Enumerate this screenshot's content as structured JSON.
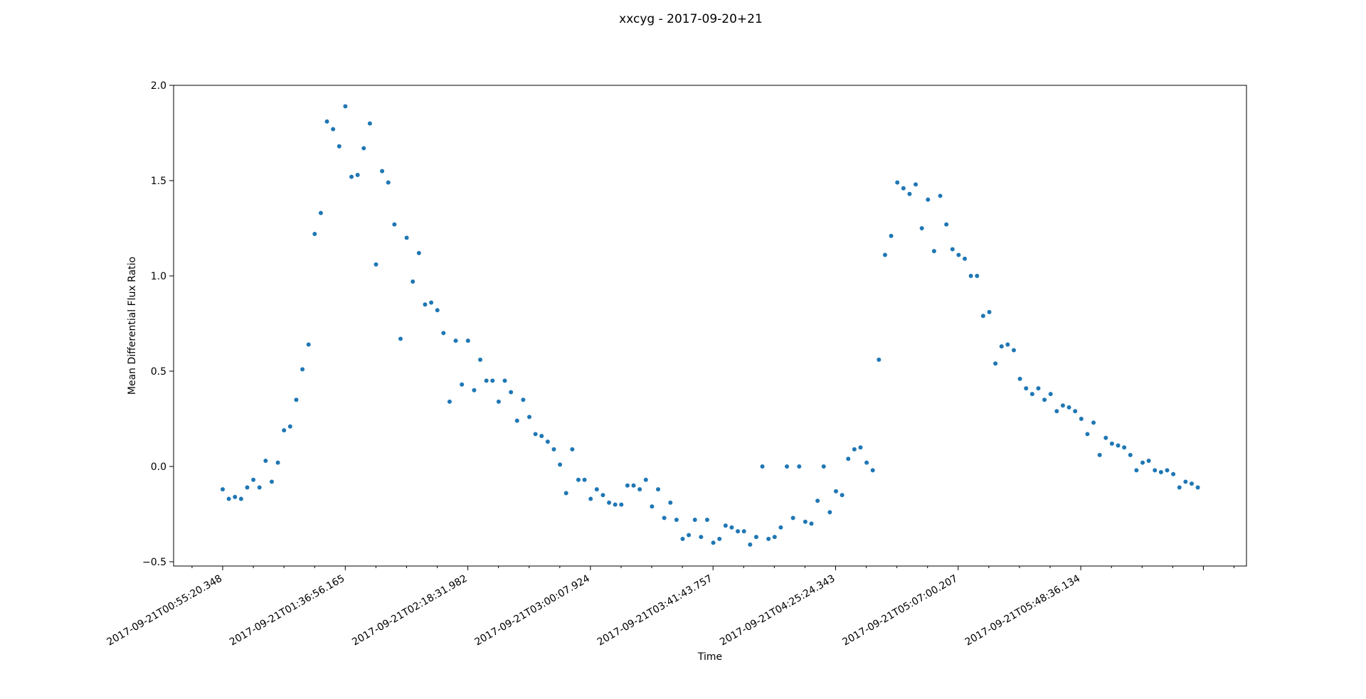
{
  "chart_data": {
    "type": "scatter",
    "title": "xxcyg - 2017-09-20+21",
    "xlabel": "Time",
    "ylabel": "Mean Differential Flux Ratio",
    "ylim": [
      -0.52,
      2.0
    ],
    "y_ticks": [
      "−0.5",
      "0.0",
      "0.5",
      "1.0",
      "1.5",
      "2.0"
    ],
    "x_tick_labels": [
      "2017-09-21T00:55:20.348",
      "2017-09-21T01:36:56.165",
      "2017-09-21T02:18:31.982",
      "2017-09-21T03:00:07.924",
      "2017-09-21T03:41:43.757",
      "2017-09-21T04:25:24.343",
      "2017-09-21T05:07:00.207",
      "2017-09-21T05:48:36.134"
    ],
    "grid": false,
    "legend": "none",
    "marker_color": "#1f77b4",
    "y": [
      -0.12,
      -0.17,
      -0.16,
      -0.17,
      -0.11,
      -0.07,
      -0.11,
      0.03,
      -0.08,
      0.02,
      0.19,
      0.21,
      0.35,
      0.51,
      0.64,
      1.22,
      1.33,
      1.81,
      1.77,
      1.68,
      1.89,
      1.52,
      1.53,
      1.67,
      1.8,
      1.06,
      1.55,
      1.49,
      1.27,
      0.67,
      1.2,
      0.97,
      1.12,
      0.85,
      0.86,
      0.82,
      0.7,
      0.34,
      0.66,
      0.43,
      0.66,
      0.4,
      0.56,
      0.45,
      0.45,
      0.34,
      0.45,
      0.39,
      0.24,
      0.35,
      0.26,
      0.17,
      0.16,
      0.13,
      0.09,
      0.01,
      -0.14,
      0.09,
      -0.07,
      -0.07,
      -0.17,
      -0.12,
      -0.15,
      -0.19,
      -0.2,
      -0.2,
      -0.1,
      -0.1,
      -0.12,
      -0.07,
      -0.21,
      -0.12,
      -0.27,
      -0.19,
      -0.28,
      -0.38,
      -0.36,
      -0.28,
      -0.37,
      -0.28,
      -0.4,
      -0.38,
      -0.31,
      -0.32,
      -0.34,
      -0.34,
      -0.41,
      -0.37,
      0.0,
      -0.38,
      -0.37,
      -0.32,
      0.0,
      -0.27,
      0.0,
      -0.29,
      -0.3,
      -0.18,
      0.0,
      -0.24,
      -0.13,
      -0.15,
      0.04,
      0.09,
      0.1,
      0.02,
      -0.02,
      0.56,
      1.11,
      1.21,
      1.49,
      1.46,
      1.43,
      1.48,
      1.25,
      1.4,
      1.13,
      1.42,
      1.27,
      1.14,
      1.11,
      1.09,
      1.0,
      1.0,
      0.79,
      0.81,
      0.54,
      0.63,
      0.64,
      0.61,
      0.46,
      0.41,
      0.38,
      0.41,
      0.35,
      0.38,
      0.29,
      0.32,
      0.31,
      0.29,
      0.25,
      0.17,
      0.23,
      0.06,
      0.15,
      0.12,
      0.11,
      0.1,
      0.06,
      -0.02,
      0.02,
      0.03,
      -0.02,
      -0.03,
      -0.02,
      -0.04,
      -0.11,
      -0.08,
      -0.09,
      -0.11
    ]
  }
}
